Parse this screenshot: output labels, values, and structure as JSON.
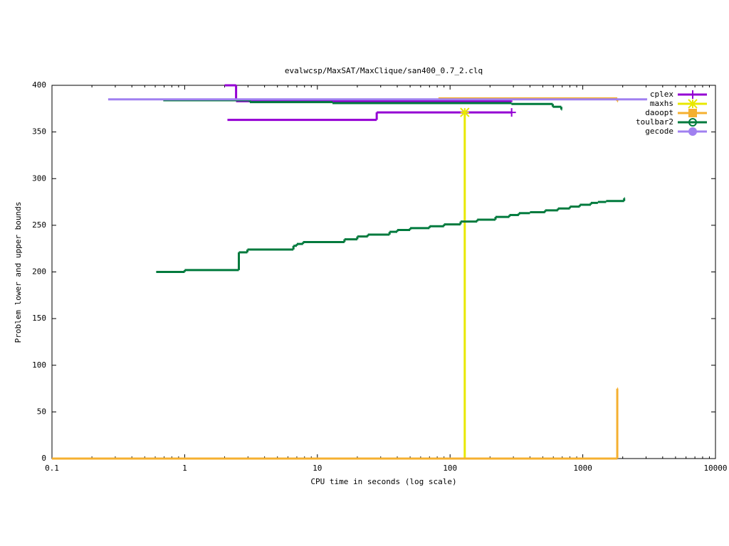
{
  "chart_data": {
    "type": "step",
    "title": "evalwcsp/MaxSAT/MaxClique/san400_0.7_2.clq",
    "x_label": "CPU time in seconds (log scale)",
    "y_label": "Problem lower and upper bounds",
    "xlog": true,
    "xlim": [
      0.1,
      10000
    ],
    "xticks": [
      0.1,
      1,
      10,
      100,
      1000,
      10000
    ],
    "ylim": [
      0,
      400
    ],
    "yticks": [
      0,
      50,
      100,
      150,
      200,
      250,
      300,
      350,
      400
    ],
    "legend": "top-right",
    "series": [
      {
        "name": "cplex",
        "color": "#9400d3",
        "marker": "plus",
        "lines": [
          {
            "x": [
              2.1,
              28,
              291
            ],
            "values": [
              363,
              371,
              371
            ]
          },
          {
            "x": [
              2.0,
              2.44,
              291
            ],
            "values": [
              400,
              383,
              383
            ]
          }
        ]
      },
      {
        "name": "maxhs",
        "color": "#e8e800",
        "marker": "star",
        "lines": [
          {
            "x": [
              0.1,
              129
            ],
            "values": [
              0,
              371
            ]
          }
        ]
      },
      {
        "name": "daoopt",
        "color": "#f5b030",
        "marker": "square",
        "lines": [
          {
            "x": [
              0.1,
              1820
            ],
            "values": [
              0,
              75
            ]
          },
          {
            "x": [
              81.7,
              1820
            ],
            "values": [
              386,
              383
            ]
          }
        ]
      },
      {
        "name": "toulbar2",
        "color": "#007a3d",
        "marker": "circle-open",
        "lines": [
          {
            "x": [
              0.61,
              1.0,
              2.56,
              2.97,
              6.6,
              7.0,
              7.8,
              16,
              20,
              24,
              35,
              40,
              50,
              70,
              90,
              120,
              160,
              220,
              280,
              330,
              400,
              520,
              650,
              800,
              950,
              1150,
              1300,
              1500,
              2050
            ],
            "values": [
              200,
              202,
              221,
              224,
              228,
              230,
              232,
              235,
              238,
              240,
              243,
              245,
              247,
              249,
              251,
              254,
              256,
              259,
              261,
              263,
              264,
              266,
              268,
              270,
              272,
              274,
              275,
              276,
              279
            ]
          },
          {
            "x": [
              0.69,
              3.1,
              13,
              290,
              594,
              689
            ],
            "values": [
              384,
              382,
              381,
              380,
              377,
              374
            ]
          }
        ]
      },
      {
        "name": "gecode",
        "color": "#a080f0",
        "marker": "circle",
        "lines": [
          {
            "x": [
              0.265,
              3020
            ],
            "values": [
              385,
              385
            ]
          }
        ]
      }
    ]
  }
}
